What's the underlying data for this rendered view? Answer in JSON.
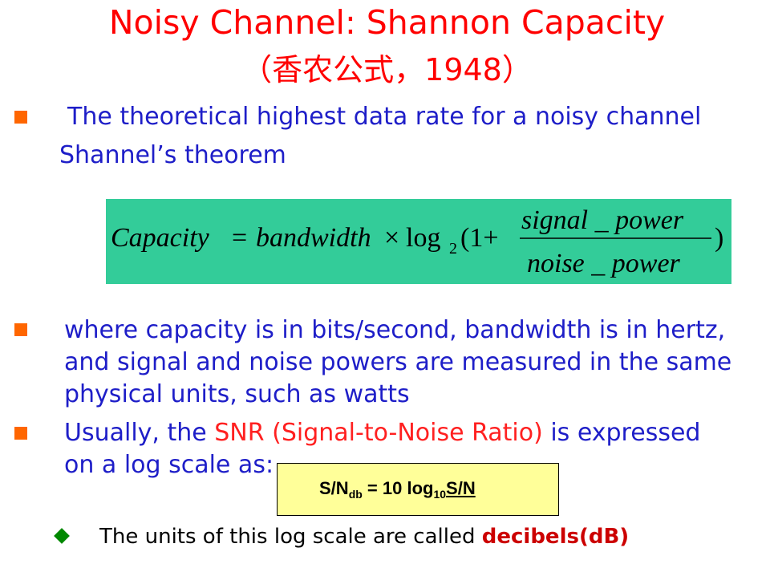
{
  "title": {
    "line1": "Noisy Channel: Shannon Capacity",
    "line2": "（香农公式，1948）"
  },
  "bullet1": {
    "line1": "The theoretical highest data rate for a noisy channel",
    "line2": "Shannel’s theorem"
  },
  "formula": {
    "lhs": "Capacity",
    "eq": "=",
    "bandwidth": "bandwidth",
    "times": "×",
    "log": "log",
    "base": "2",
    "open": "(1+",
    "numerator": "signal _ power",
    "denominator": "noise _ power",
    "close": ")",
    "background_color": "#33cc99"
  },
  "bullet2": {
    "line1": "where capacity is in bits/second, bandwidth is in hertz,",
    "line2": "and signal and noise powers are measured in the same",
    "line3": "physical units, such as watts"
  },
  "bullet3": {
    "prefix": "Usually, the ",
    "highlight": "SNR (Signal-to-Noise Ratio)",
    "suffix": " is expressed",
    "line2": "on a log scale as:"
  },
  "snr_formula": {
    "sn": "S/N",
    "sub_db": "db",
    "eq": " = 10 log",
    "sub_10": "10",
    "tail": "S/N"
  },
  "sub_bullet": {
    "text": "The units of this log scale are called ",
    "highlight": "decibels(dB)"
  },
  "colors": {
    "title": "#ff0000",
    "body_text": "#1e1ec8",
    "bullet": "#ff6600",
    "diamond": "#008800",
    "snr_box": "#ffff99"
  }
}
